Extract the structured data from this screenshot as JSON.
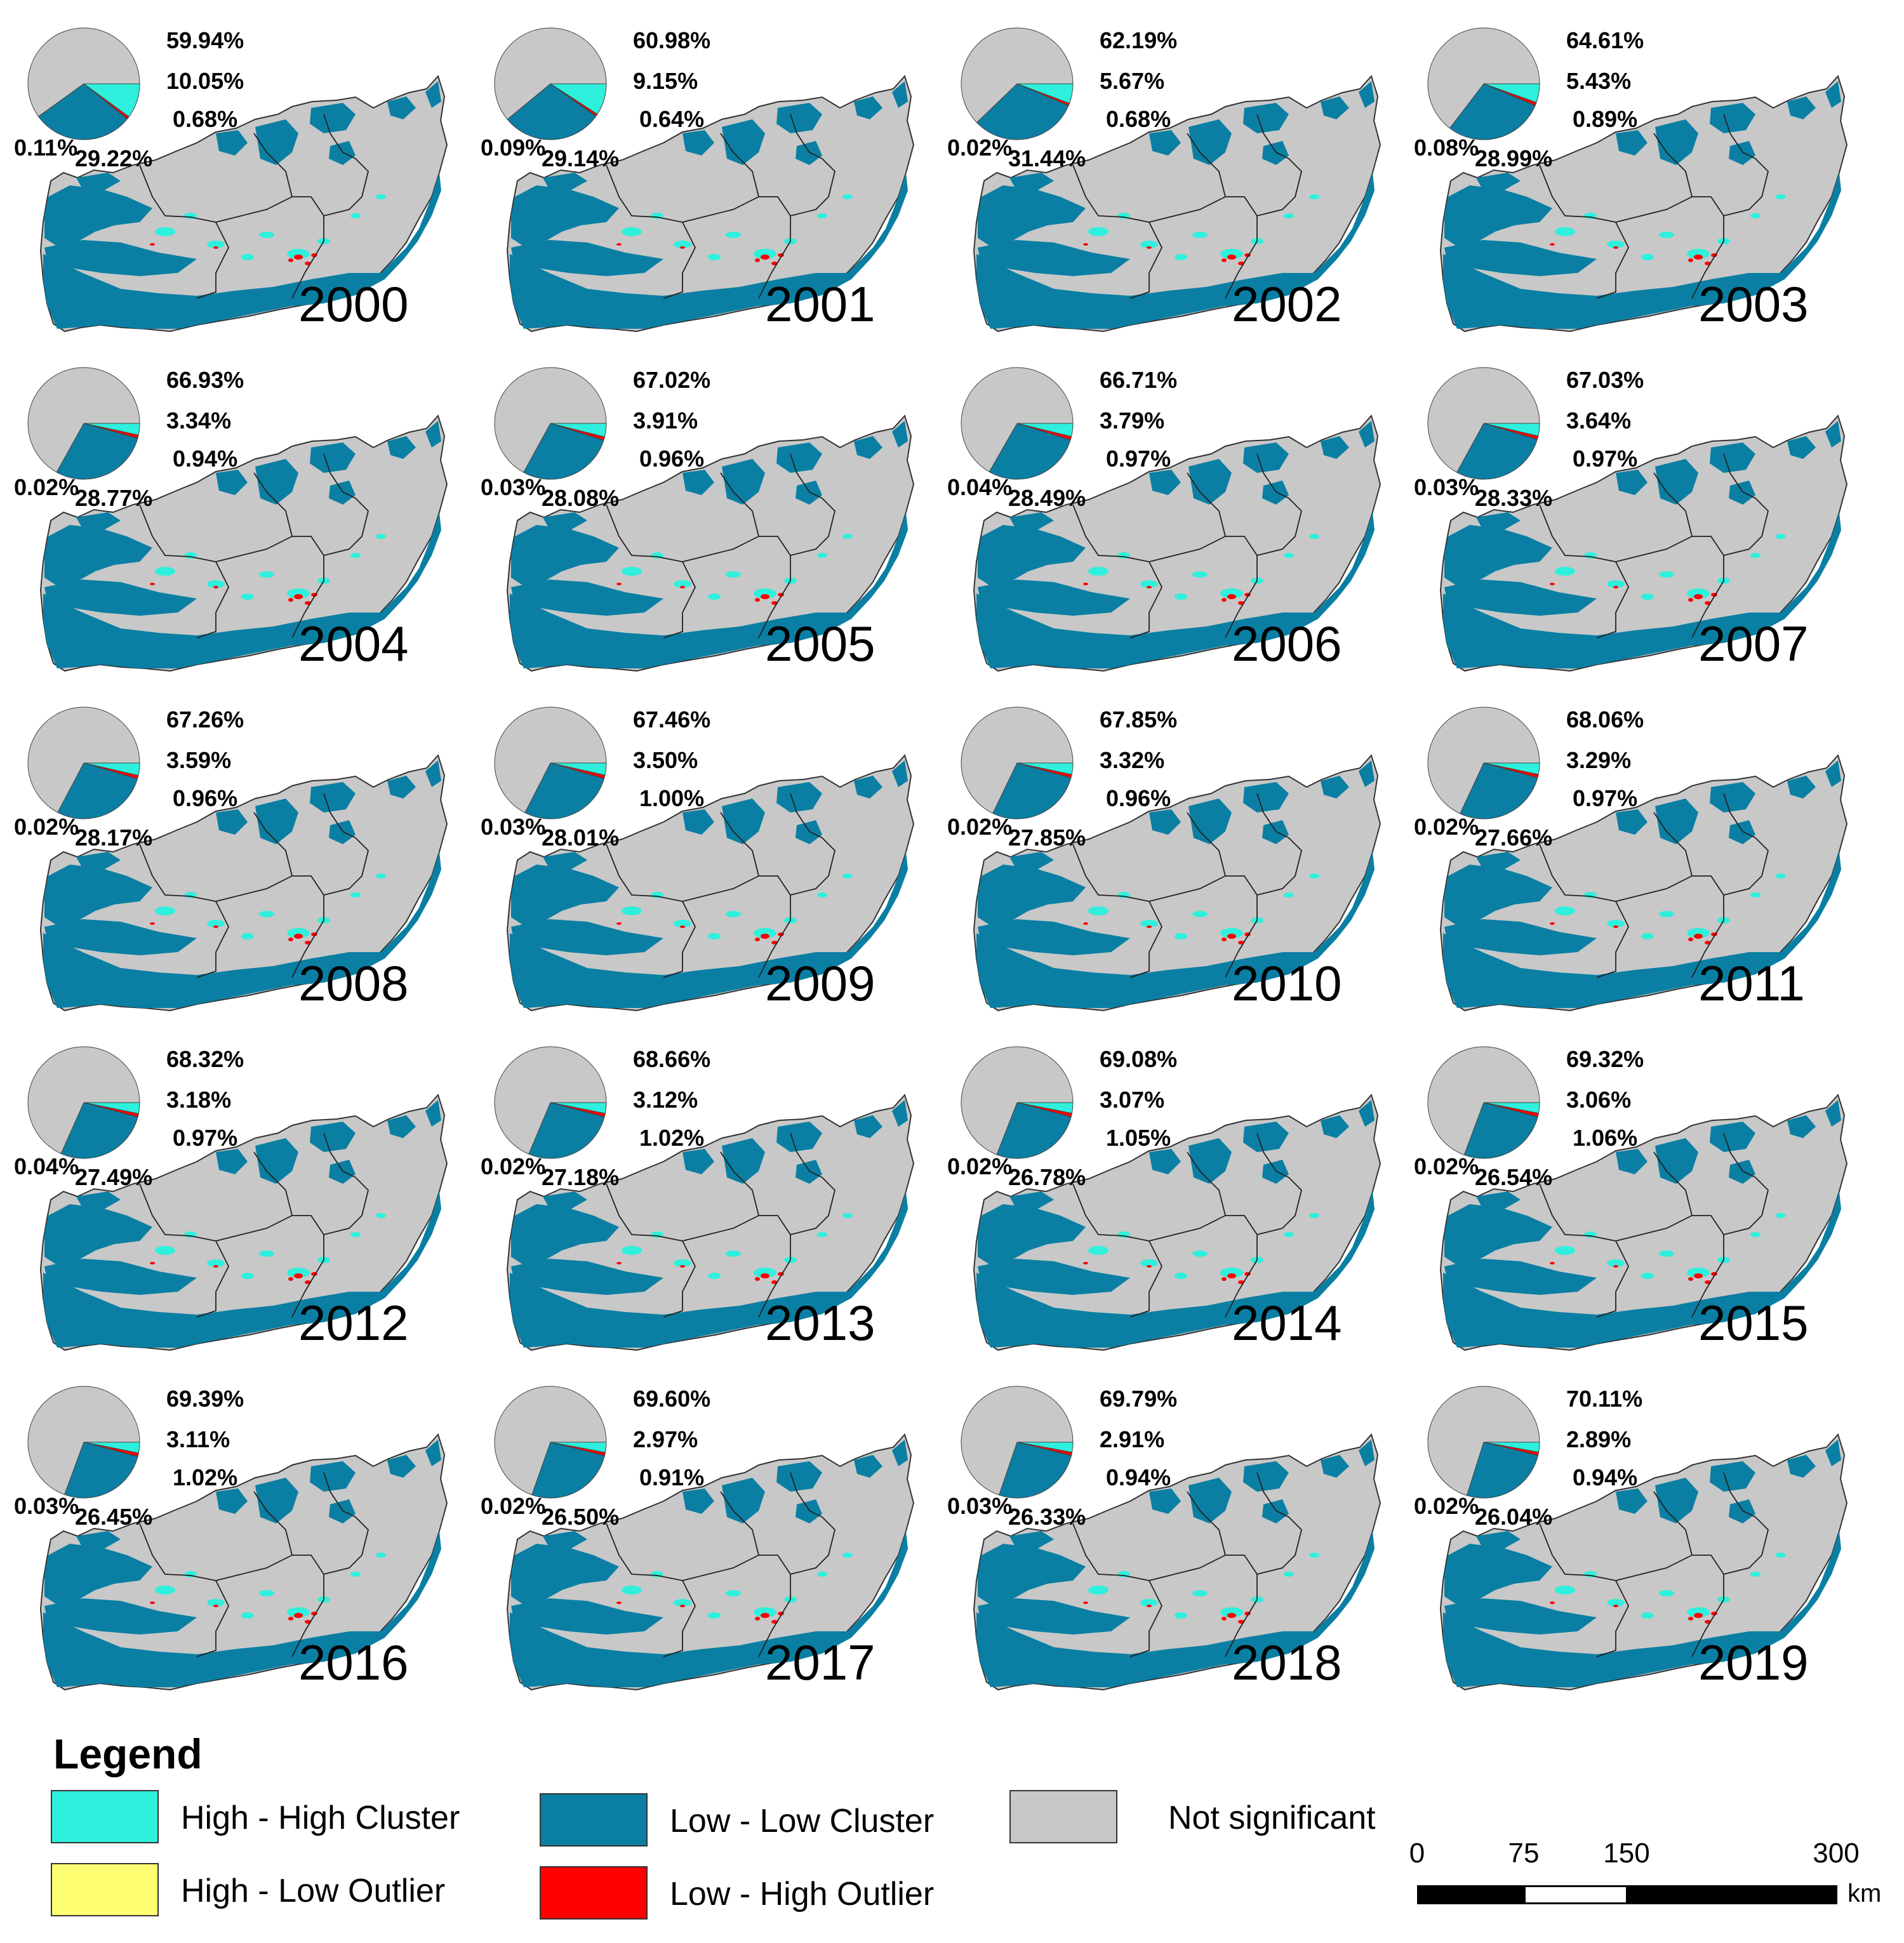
{
  "colors": {
    "high_high": "#2ef0dc",
    "low_low": "#0a7fa3",
    "not_significant": "#c8c8c8",
    "high_low": "#ffff73",
    "low_high": "#ff0000"
  },
  "panels": [
    {
      "year": "2000",
      "not_significant": "59.94%",
      "high_high": "10.05%",
      "low_high": "0.68%",
      "high_low": "0.11%",
      "low_low": "29.22%"
    },
    {
      "year": "2001",
      "not_significant": "60.98%",
      "high_high": "9.15%",
      "low_high": "0.64%",
      "high_low": "0.09%",
      "low_low": "29.14%"
    },
    {
      "year": "2002",
      "not_significant": "62.19%",
      "high_high": "5.67%",
      "low_high": "0.68%",
      "high_low": "0.02%",
      "low_low": "31.44%"
    },
    {
      "year": "2003",
      "not_significant": "64.61%",
      "high_high": "5.43%",
      "low_high": "0.89%",
      "high_low": "0.08%",
      "low_low": "28.99%"
    },
    {
      "year": "2004",
      "not_significant": "66.93%",
      "high_high": "3.34%",
      "low_high": "0.94%",
      "high_low": "0.02%",
      "low_low": "28.77%"
    },
    {
      "year": "2005",
      "not_significant": "67.02%",
      "high_high": "3.91%",
      "low_high": "0.96%",
      "high_low": "0.03%",
      "low_low": "28.08%"
    },
    {
      "year": "2006",
      "not_significant": "66.71%",
      "high_high": "3.79%",
      "low_high": "0.97%",
      "high_low": "0.04%",
      "low_low": "28.49%"
    },
    {
      "year": "2007",
      "not_significant": "67.03%",
      "high_high": "3.64%",
      "low_high": "0.97%",
      "high_low": "0.03%",
      "low_low": "28.33%"
    },
    {
      "year": "2008",
      "not_significant": "67.26%",
      "high_high": "3.59%",
      "low_high": "0.96%",
      "high_low": "0.02%",
      "low_low": "28.17%"
    },
    {
      "year": "2009",
      "not_significant": "67.46%",
      "high_high": "3.50%",
      "low_high": "1.00%",
      "high_low": "0.03%",
      "low_low": "28.01%"
    },
    {
      "year": "2010",
      "not_significant": "67.85%",
      "high_high": "3.32%",
      "low_high": "0.96%",
      "high_low": "0.02%",
      "low_low": "27.85%"
    },
    {
      "year": "2011",
      "not_significant": "68.06%",
      "high_high": "3.29%",
      "low_high": "0.97%",
      "high_low": "0.02%",
      "low_low": "27.66%"
    },
    {
      "year": "2012",
      "not_significant": "68.32%",
      "high_high": "3.18%",
      "low_high": "0.97%",
      "high_low": "0.04%",
      "low_low": "27.49%"
    },
    {
      "year": "2013",
      "not_significant": "68.66%",
      "high_high": "3.12%",
      "low_high": "1.02%",
      "high_low": "0.02%",
      "low_low": "27.18%"
    },
    {
      "year": "2014",
      "not_significant": "69.08%",
      "high_high": "3.07%",
      "low_high": "1.05%",
      "high_low": "0.02%",
      "low_low": "26.78%"
    },
    {
      "year": "2015",
      "not_significant": "69.32%",
      "high_high": "3.06%",
      "low_high": "1.06%",
      "high_low": "0.02%",
      "low_low": "26.54%"
    },
    {
      "year": "2016",
      "not_significant": "69.39%",
      "high_high": "3.11%",
      "low_high": "1.02%",
      "high_low": "0.03%",
      "low_low": "26.45%"
    },
    {
      "year": "2017",
      "not_significant": "69.60%",
      "high_high": "2.97%",
      "low_high": "0.91%",
      "high_low": "0.02%",
      "low_low": "26.50%"
    },
    {
      "year": "2018",
      "not_significant": "69.79%",
      "high_high": "2.91%",
      "low_high": "0.94%",
      "high_low": "0.03%",
      "low_low": "26.33%"
    },
    {
      "year": "2019",
      "not_significant": "70.11%",
      "high_high": "2.89%",
      "low_high": "0.94%",
      "high_low": "0.02%",
      "low_low": "26.04%"
    }
  ],
  "legend": {
    "title": "Legend",
    "items": [
      {
        "key": "high_high",
        "label": "High - High Cluster"
      },
      {
        "key": "low_low",
        "label": "Low - Low Cluster"
      },
      {
        "key": "not_significant",
        "label": "Not significant"
      },
      {
        "key": "high_low",
        "label": "High - Low Outlier"
      },
      {
        "key": "low_high",
        "label": "Low - High Outlier"
      }
    ]
  },
  "scalebar": {
    "ticks": [
      "0",
      "75",
      "150",
      "300"
    ],
    "unit": "km"
  }
}
